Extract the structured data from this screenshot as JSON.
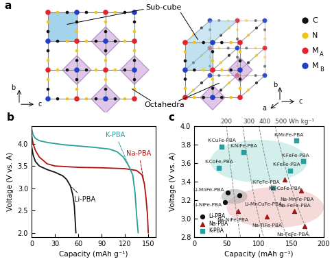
{
  "diagram": {
    "panel_label": "a",
    "sub_cube_label": "Sub-cube",
    "octahedra_label": "Octahedra",
    "axes_2d": [
      "b",
      "c"
    ],
    "axes_3d": [
      "b",
      "c",
      "a"
    ],
    "legend": [
      {
        "label": "C",
        "color": "#111111"
      },
      {
        "label": "N",
        "color": "#f2c318"
      },
      {
        "label": "M",
        "subscript": "A",
        "color": "#e8202a"
      },
      {
        "label": "M",
        "subscript": "B",
        "color": "#2040c8"
      }
    ]
  },
  "chart_data": [
    {
      "type": "line",
      "panel_label": "b",
      "x_label": "Capacity (mAh g⁻¹)",
      "y_label": "Voltage (V vs. A)",
      "xlim": [
        0,
        160
      ],
      "xticks": [
        0,
        30,
        60,
        90,
        120,
        150
      ],
      "ylim": [
        1.9,
        4.4
      ],
      "yticks": [
        {
          "value": 2.0,
          "label": "2.0"
        },
        {
          "value": 2.5,
          "label": "2.5"
        },
        {
          "value": 3.0,
          "label": "3.0"
        },
        {
          "value": 3.5,
          "label": "3.5"
        },
        {
          "value": 4.0,
          "label": "4.0"
        }
      ],
      "series": [
        {
          "name": "Li-PBA",
          "color": "#111111",
          "x": [
            0,
            2,
            5,
            10,
            20,
            30,
            40,
            45,
            50,
            53,
            55,
            56,
            57
          ],
          "values": [
            3.95,
            3.75,
            3.6,
            3.5,
            3.42,
            3.36,
            3.28,
            3.2,
            3.05,
            2.85,
            2.6,
            2.3,
            2.0
          ]
        },
        {
          "name": "Na-PBA",
          "color": "#b01010",
          "x": [
            0,
            2,
            5,
            10,
            20,
            30,
            60,
            90,
            120,
            135,
            142,
            145,
            147,
            149,
            150
          ],
          "values": [
            4.2,
            4.0,
            3.85,
            3.7,
            3.55,
            3.5,
            3.47,
            3.46,
            3.44,
            3.4,
            3.3,
            3.1,
            2.8,
            2.4,
            2.0
          ]
        },
        {
          "name": "K-PBA",
          "color": "#2a9d9d",
          "x": [
            0,
            2,
            5,
            10,
            20,
            40,
            60,
            80,
            100,
            110,
            118,
            125,
            130,
            133,
            135,
            137
          ],
          "values": [
            4.35,
            4.2,
            4.12,
            4.07,
            4.03,
            3.98,
            3.95,
            3.92,
            3.88,
            3.82,
            3.7,
            3.5,
            3.3,
            2.9,
            2.4,
            2.0
          ]
        }
      ]
    },
    {
      "type": "scatter",
      "panel_label": "c",
      "x_label": "Capacity (mAh g⁻¹)",
      "y_label": "Voltage (V vs. A)",
      "xlim": [
        0,
        200
      ],
      "xticks": [
        0,
        50,
        100,
        150,
        200
      ],
      "ylim": [
        2.8,
        4.0
      ],
      "yticks": [
        {
          "value": 2.8,
          "label": "2.8"
        },
        {
          "value": 3.0,
          "label": "3.0"
        },
        {
          "value": 3.2,
          "label": "3.2"
        },
        {
          "value": 3.4,
          "label": "3.4"
        },
        {
          "value": 3.6,
          "label": "3.6"
        },
        {
          "value": 3.8,
          "label": "3.8"
        },
        {
          "value": 4.0,
          "label": "4.0"
        }
      ],
      "legend": "lower left",
      "energy_density": {
        "values": [
          200,
          300,
          400,
          500
        ],
        "labels": [
          "200",
          "300",
          "400",
          "500 Wh kg⁻¹"
        ]
      },
      "series": [
        {
          "name": "Li-PBA",
          "color": "#111111",
          "marker": "circle",
          "x": [
            52,
            48,
            70
          ],
          "values": [
            3.28,
            3.18,
            3.25
          ],
          "point_labels": [
            "Li-MnFe-PBA",
            "Li-NiFe-PBA",
            "Li-MnCuFe-PBA"
          ]
        },
        {
          "name": "Na-PBA",
          "color": "#a01818",
          "marker": "triangle",
          "x": [
            140,
            165,
            155,
            170,
            112,
            68
          ],
          "values": [
            3.42,
            3.3,
            3.08,
            2.92,
            3.02,
            3.08
          ],
          "point_labels": [
            "Na-CoFe-PBA",
            "Na-MnFe-PBA",
            "Na-FeFe-PBA",
            "Na-FeFe-PBA",
            "Na-TiFe-PBA",
            "Na-NiFe-PBA"
          ]
        },
        {
          "name": "K-PBA",
          "color": "#2a9d9d",
          "marker": "square",
          "x": [
            42,
            158,
            76,
            168,
            148,
            38,
            122
          ],
          "values": [
            3.78,
            3.84,
            3.72,
            3.62,
            3.52,
            3.55,
            3.33
          ],
          "point_labels": [
            "K-CuFe-PBA",
            "K-MnFe-PBA",
            "K-NiFe-PBA",
            "K-FeFe-PBA",
            "K-FeFe-PBA",
            "K-CoFe-PBA",
            "K-FeFe-PBA"
          ]
        }
      ]
    }
  ]
}
